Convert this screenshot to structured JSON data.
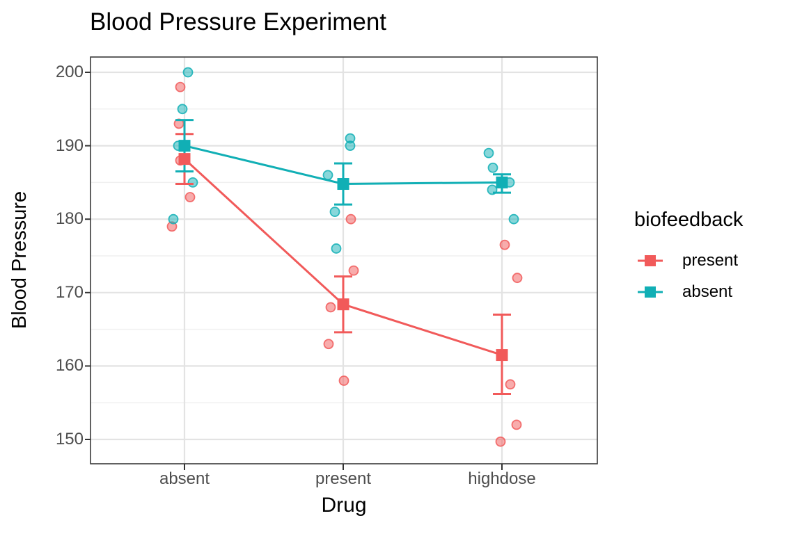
{
  "chart_data": {
    "type": "scatter",
    "subtype": "jittered points with group means, 95% CI error bars and connecting lines",
    "title": "Blood Pressure Experiment",
    "xlabel": "Drug",
    "ylabel": "Blood Pressure",
    "categories": [
      "absent",
      "present",
      "highdose"
    ],
    "y_axis": {
      "ticks_major": [
        200,
        190,
        180,
        170,
        160,
        150
      ],
      "ticks_minor": [
        195,
        185,
        175,
        165,
        155
      ]
    },
    "ylim": [
      146.7,
      202.1
    ],
    "grid": "horizontal major+minor, vertical major at each category, light gray on white panel",
    "legend": {
      "title": "biofeedback",
      "position": "right",
      "entries": [
        {
          "label": "present"
        },
        {
          "label": "absent"
        }
      ]
    },
    "series": [
      {
        "name": "present",
        "color": "#F15A5A",
        "means": [
          188.2,
          168.4,
          161.5
        ],
        "ci_low": [
          184.8,
          164.6,
          156.2
        ],
        "ci_high": [
          191.6,
          172.2,
          167.0
        ],
        "points": [
          {
            "category": "absent",
            "value": 198,
            "dx": -6
          },
          {
            "category": "absent",
            "value": 193,
            "dx": -8
          },
          {
            "category": "absent",
            "value": 188,
            "dx": -6
          },
          {
            "category": "absent",
            "value": 183,
            "dx": 8
          },
          {
            "category": "absent",
            "value": 179,
            "dx": -18
          },
          {
            "category": "present",
            "value": 180,
            "dx": 11
          },
          {
            "category": "present",
            "value": 173,
            "dx": 15
          },
          {
            "category": "present",
            "value": 168,
            "dx": -18
          },
          {
            "category": "present",
            "value": 163,
            "dx": -21
          },
          {
            "category": "present",
            "value": 158,
            "dx": 1
          },
          {
            "category": "highdose",
            "value": 176.5,
            "dx": 4
          },
          {
            "category": "highdose",
            "value": 172,
            "dx": 22
          },
          {
            "category": "highdose",
            "value": 157.5,
            "dx": 12
          },
          {
            "category": "highdose",
            "value": 152,
            "dx": 21
          },
          {
            "category": "highdose",
            "value": 149.7,
            "dx": -2
          }
        ]
      },
      {
        "name": "absent",
        "color": "#11AFB5",
        "means": [
          190,
          184.8,
          185
        ],
        "ci_low": [
          186.5,
          182.0,
          183.6
        ],
        "ci_high": [
          193.5,
          187.6,
          186.1
        ],
        "points": [
          {
            "category": "absent",
            "value": 200,
            "dx": 5
          },
          {
            "category": "absent",
            "value": 195,
            "dx": -3
          },
          {
            "category": "absent",
            "value": 190,
            "dx": -9
          },
          {
            "category": "absent",
            "value": 185,
            "dx": 12
          },
          {
            "category": "absent",
            "value": 180,
            "dx": -16
          },
          {
            "category": "present",
            "value": 191,
            "dx": 10
          },
          {
            "category": "present",
            "value": 190,
            "dx": 10
          },
          {
            "category": "present",
            "value": 186,
            "dx": -22
          },
          {
            "category": "present",
            "value": 181,
            "dx": -12
          },
          {
            "category": "present",
            "value": 176,
            "dx": -10
          },
          {
            "category": "highdose",
            "value": 189,
            "dx": -19
          },
          {
            "category": "highdose",
            "value": 187,
            "dx": -13
          },
          {
            "category": "highdose",
            "value": 185,
            "dx": 11
          },
          {
            "category": "highdose",
            "value": 184,
            "dx": -14
          },
          {
            "category": "highdose",
            "value": 180,
            "dx": 17
          }
        ]
      }
    ],
    "style": {
      "background": "#FFFFFF",
      "grid_major": "#E3E3E3",
      "grid_minor": "#F0F0F0",
      "panel_border": "#3A3A3A",
      "axis_tick": "#333333",
      "tick_label_color": "#4D4D4D",
      "text_color": "#000000",
      "point_fill_opacity": 0.5
    }
  }
}
